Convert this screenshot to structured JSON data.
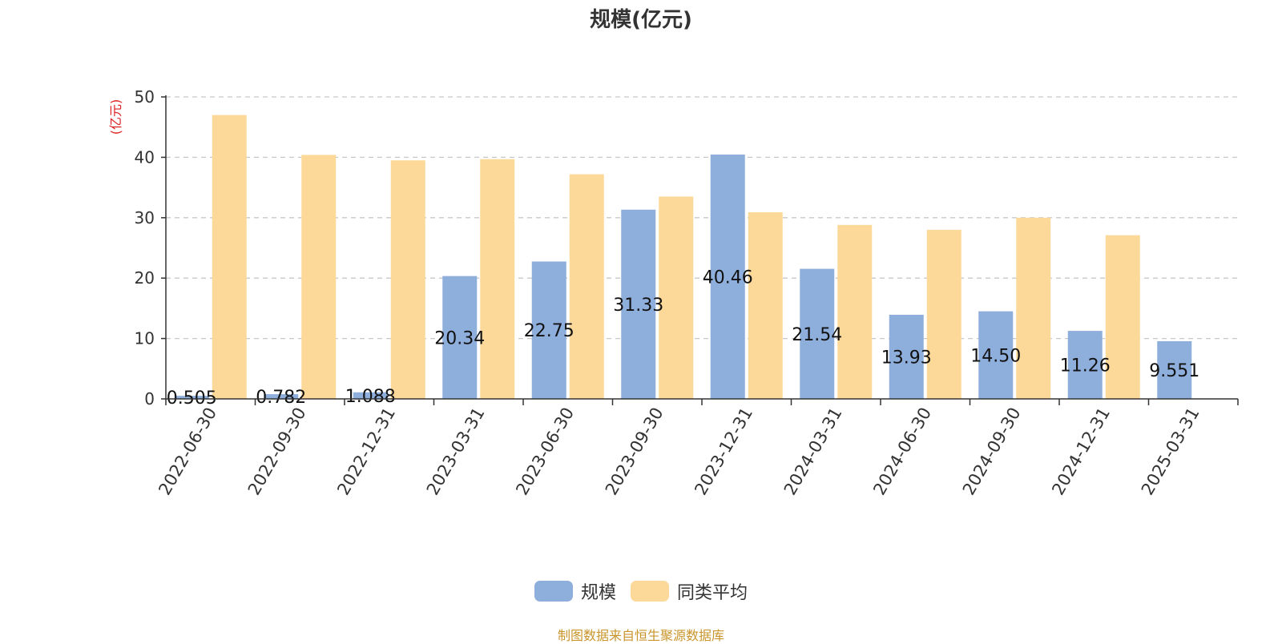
{
  "chart_data": {
    "type": "bar",
    "title": "规模(亿元)",
    "ylabel": "(亿元)",
    "ylim": [
      0,
      50
    ],
    "yticks": [
      0,
      10,
      20,
      30,
      40,
      50
    ],
    "grid": true,
    "legend_position": "bottom",
    "categories": [
      "2022-06-30",
      "2022-09-30",
      "2022-12-31",
      "2023-03-31",
      "2023-06-30",
      "2023-09-30",
      "2023-12-31",
      "2024-03-31",
      "2024-06-30",
      "2024-09-30",
      "2024-12-31",
      "2025-03-31"
    ],
    "series": [
      {
        "name": "规模",
        "color": "#8eaedc",
        "values": [
          0.505,
          0.782,
          1.088,
          20.34,
          22.75,
          31.33,
          40.46,
          21.54,
          13.93,
          14.5,
          11.26,
          9.551
        ],
        "labels": [
          "0.505",
          "0.782",
          "1.088",
          "20.34",
          "22.75",
          "31.33",
          "40.46",
          "21.54",
          "13.93",
          "14.50",
          "11.26",
          "9.551"
        ]
      },
      {
        "name": "同类平均",
        "color": "#fdd999",
        "values": [
          47.0,
          40.4,
          39.5,
          39.7,
          37.2,
          33.5,
          30.9,
          28.8,
          28.0,
          30.0,
          27.1,
          null
        ]
      }
    ]
  },
  "legend": [
    {
      "label": "规模",
      "color": "#8eaedc"
    },
    {
      "label": "同类平均",
      "color": "#fdd999"
    }
  ],
  "source_note": "制图数据来自恒生聚源数据库"
}
